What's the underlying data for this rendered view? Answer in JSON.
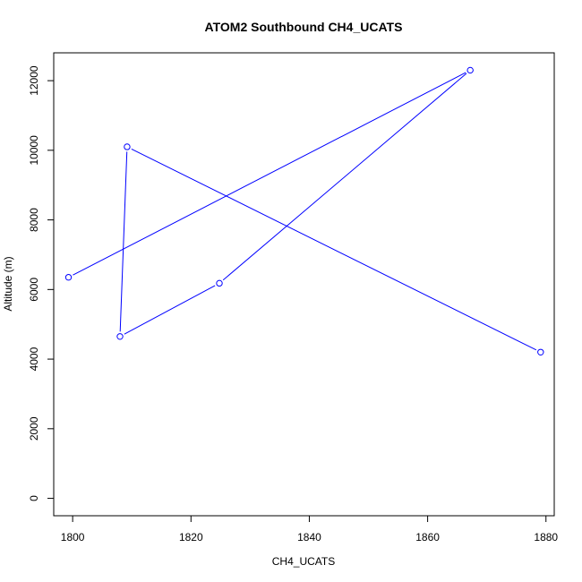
{
  "chart_data": {
    "type": "line",
    "title": "ATOM2 Southbound CH4_UCATS",
    "xlabel": "CH4_UCATS",
    "ylabel": "Altitude (m)",
    "xlim": [
      1796.8,
      1881.4
    ],
    "ylim": [
      -500,
      12800
    ],
    "x_ticks": [
      1800,
      1820,
      1840,
      1860,
      1880
    ],
    "y_ticks": [
      0,
      2000,
      4000,
      6000,
      8000,
      10000,
      12000
    ],
    "x_tick_labels": [
      "1800",
      "1820",
      "1840",
      "1860",
      "1880"
    ],
    "y_tick_labels": [
      "0",
      "2000",
      "4000",
      "6000",
      "8000",
      "10000",
      "12000"
    ],
    "grid": false,
    "markers": "open-circle",
    "series": [
      {
        "color": "#0000ff",
        "points": [
          {
            "x": 1879.1,
            "y": 4200
          },
          {
            "x": 1809.2,
            "y": 10100
          },
          {
            "x": 1808.0,
            "y": 4650
          },
          {
            "x": 1824.8,
            "y": 6180
          },
          {
            "x": 1867.2,
            "y": 12300
          },
          {
            "x": 1799.3,
            "y": 6350
          }
        ]
      }
    ]
  }
}
